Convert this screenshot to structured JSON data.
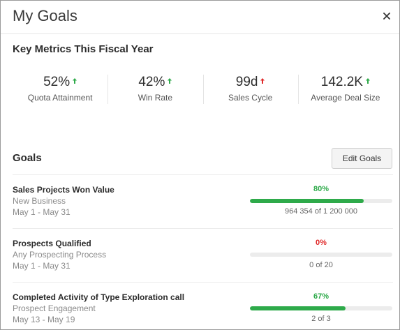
{
  "dialog": {
    "title": "My Goals",
    "close_icon": "close-icon"
  },
  "key_metrics": {
    "title": "Key Metrics This Fiscal Year",
    "items": [
      {
        "value": "52%",
        "label": "Quota Attainment",
        "trend": "up",
        "trend_color": "#2eaa4a"
      },
      {
        "value": "42%",
        "label": "Win Rate",
        "trend": "up",
        "trend_color": "#2eaa4a"
      },
      {
        "value": "99d",
        "label": "Sales Cycle",
        "trend": "up",
        "trend_color": "#e02b2b"
      },
      {
        "value": "142.2K",
        "label": "Average Deal Size",
        "trend": "up",
        "trend_color": "#2eaa4a"
      }
    ]
  },
  "goals": {
    "title": "Goals",
    "edit_label": "Edit Goals",
    "items": [
      {
        "name": "Sales Projects Won Value",
        "category": "New Business",
        "date_range": "May 1 - May 31",
        "percent_label": "80%",
        "progress": 0.8,
        "status": "green",
        "count": "964 354 of 1 200 000"
      },
      {
        "name": "Prospects Qualified",
        "category": "Any Prospecting Process",
        "date_range": "May 1 - May 31",
        "percent_label": "0%",
        "progress": 0.0,
        "status": "red",
        "count": "0 of 20"
      },
      {
        "name": "Completed Activity of Type Exploration call",
        "category": "Prospect Engagement",
        "date_range": "May 13 - May 19",
        "percent_label": "67%",
        "progress": 0.67,
        "status": "green",
        "count": "2 of 3"
      }
    ]
  },
  "colors": {
    "positive": "#2eaa4a",
    "negative": "#e02b2b",
    "bar_track": "#ececec"
  }
}
